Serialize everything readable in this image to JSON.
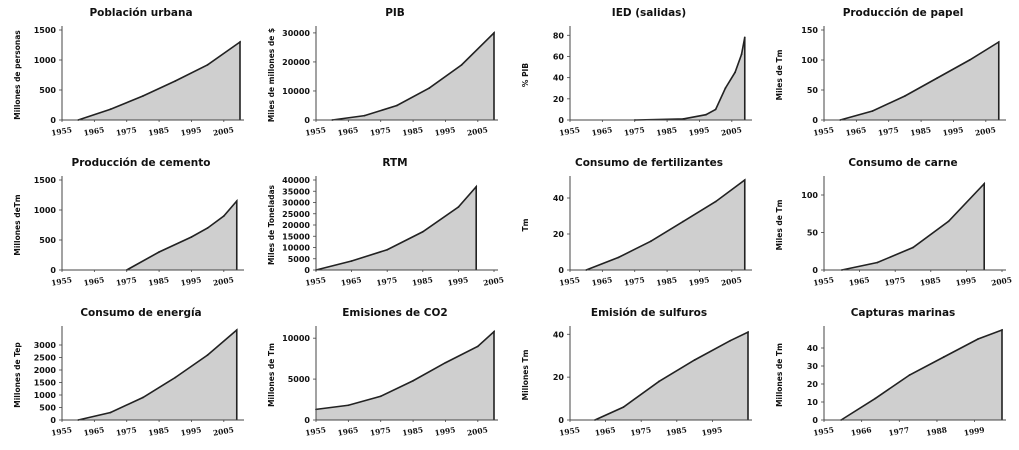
{
  "chart_data": [
    {
      "type": "area",
      "title": "Población urbana",
      "ylabel": "Millones de personas",
      "yticks": [
        0,
        500,
        1000,
        1500
      ],
      "ylim": [
        0,
        1500
      ],
      "xlim": [
        1955,
        2010
      ],
      "xticks": [
        "1955",
        "1965",
        "1975",
        "1985",
        "1995",
        "2005"
      ],
      "x": [
        1960,
        1970,
        1980,
        1990,
        2000,
        2010
      ],
      "y": [
        0,
        180,
        400,
        650,
        920,
        1300
      ]
    },
    {
      "type": "area",
      "title": "PIB",
      "ylabel": "Miles de millones de $",
      "yticks": [
        0,
        10000,
        20000,
        30000
      ],
      "ylim": [
        0,
        31000
      ],
      "xlim": [
        1955,
        2010
      ],
      "xticks": [
        "1955",
        "1965",
        "1975",
        "1985",
        "1995",
        "2005"
      ],
      "x": [
        1960,
        1970,
        1980,
        1990,
        2000,
        2010
      ],
      "y": [
        0,
        1500,
        5000,
        11000,
        19000,
        30000
      ]
    },
    {
      "type": "area",
      "title": "IED (salidas)",
      "ylabel": "% PIB",
      "yticks": [
        0,
        20,
        40,
        60,
        80
      ],
      "ylim": [
        0,
        85
      ],
      "xlim": [
        1955,
        2010
      ],
      "xticks": [
        "1955",
        "1965",
        "1975",
        "1985",
        "1995",
        "2005"
      ],
      "x": [
        1975,
        1990,
        1997,
        2000,
        2003,
        2006,
        2008,
        2009
      ],
      "y": [
        0,
        1,
        5,
        10,
        30,
        45,
        62,
        78
      ]
    },
    {
      "type": "area",
      "title": "Producción de papel",
      "ylabel": "Miles de Tm",
      "yticks": [
        0,
        50,
        100,
        150
      ],
      "ylim": [
        0,
        150
      ],
      "xlim": [
        1955,
        2010
      ],
      "xticks": [
        "1955",
        "1965",
        "1975",
        "1985",
        "1995",
        "2005"
      ],
      "x": [
        1960,
        1970,
        1980,
        1990,
        2000,
        2009
      ],
      "y": [
        0,
        15,
        40,
        70,
        100,
        130
      ]
    },
    {
      "type": "area",
      "title": "Producción de cemento",
      "ylabel": "Millones deTm",
      "yticks": [
        0,
        500,
        1000,
        1500
      ],
      "ylim": [
        0,
        1500
      ],
      "xlim": [
        1955,
        2010
      ],
      "xticks": [
        "1955",
        "1965",
        "1975",
        "1985",
        "1995",
        "2005"
      ],
      "x": [
        1975,
        1985,
        1995,
        2000,
        2005,
        2009
      ],
      "y": [
        0,
        300,
        550,
        700,
        900,
        1150
      ]
    },
    {
      "type": "area",
      "title": "RTM",
      "ylabel": "Miles de Toneladas",
      "yticks": [
        0,
        5000,
        10000,
        15000,
        20000,
        25000,
        30000,
        35000,
        40000
      ],
      "ylim": [
        0,
        40000
      ],
      "xlim": [
        1955,
        2005
      ],
      "xticks": [
        "1955",
        "1965",
        "1975",
        "1985",
        "1995",
        "2005"
      ],
      "x": [
        1955,
        1965,
        1975,
        1985,
        1995,
        2000
      ],
      "y": [
        0,
        4000,
        9000,
        17000,
        28000,
        37000
      ]
    },
    {
      "type": "area",
      "title": "Consumo de fertilizantes",
      "ylabel": "Tm",
      "yticks": [
        0,
        20,
        40
      ],
      "ylim": [
        0,
        50
      ],
      "xlim": [
        1955,
        2010
      ],
      "xticks": [
        "1955",
        "1965",
        "1975",
        "1985",
        "1995",
        "2005"
      ],
      "x": [
        1960,
        1970,
        1980,
        1990,
        2000,
        2009
      ],
      "y": [
        0,
        7,
        16,
        27,
        38,
        50
      ]
    },
    {
      "type": "area",
      "title": "Consumo de carne",
      "ylabel": "Miles de Tm",
      "yticks": [
        0,
        50,
        100
      ],
      "ylim": [
        0,
        120
      ],
      "xlim": [
        1955,
        2005
      ],
      "xticks": [
        "1955",
        "1965",
        "1975",
        "1985",
        "1995",
        "2005"
      ],
      "x": [
        1960,
        1970,
        1980,
        1990,
        2000
      ],
      "y": [
        0,
        10,
        30,
        65,
        115
      ]
    },
    {
      "type": "area",
      "title": "Consumo de energía",
      "ylabel": "Millones de Tep",
      "yticks": [
        0,
        500,
        1000,
        1500,
        2000,
        2500,
        3000
      ],
      "ylim": [
        0,
        3600
      ],
      "xlim": [
        1955,
        2010
      ],
      "xticks": [
        "1955",
        "1965",
        "1975",
        "1985",
        "1995",
        "2005"
      ],
      "x": [
        1960,
        1970,
        1980,
        1990,
        2000,
        2009
      ],
      "y": [
        0,
        300,
        900,
        1700,
        2600,
        3600
      ]
    },
    {
      "type": "area",
      "title": "Emisiones de CO2",
      "ylabel": "Millones de Tm",
      "yticks": [
        0,
        5000,
        10000
      ],
      "ylim": [
        0,
        11000
      ],
      "xlim": [
        1955,
        2010
      ],
      "xticks": [
        "1955",
        "1965",
        "1975",
        "1985",
        "1995",
        "2005"
      ],
      "x": [
        1955,
        1965,
        1975,
        1985,
        1995,
        2005,
        2010
      ],
      "y": [
        1300,
        1800,
        2900,
        4800,
        7000,
        9000,
        10800
      ]
    },
    {
      "type": "area",
      "title": "Emisión de sulfuros",
      "ylabel": "Millones Tm",
      "yticks": [
        0,
        20,
        40
      ],
      "ylim": [
        0,
        42
      ],
      "xlim": [
        1955,
        2005
      ],
      "xticks": [
        "1955",
        "1965",
        "1975",
        "1985",
        "1995"
      ],
      "x": [
        1962,
        1970,
        1980,
        1990,
        2000,
        2005
      ],
      "y": [
        0,
        6,
        18,
        28,
        37,
        41
      ]
    },
    {
      "type": "area",
      "title": "Capturas marinas",
      "ylabel": "Millones de Tm",
      "yticks": [
        0,
        10,
        20,
        30,
        40
      ],
      "ylim": [
        0,
        50
      ],
      "xlim": [
        1955,
        2007
      ],
      "xticks": [
        "1955",
        "1966",
        "1977",
        "1988",
        "1999"
      ],
      "x": [
        1960,
        1970,
        1980,
        1990,
        2000,
        2007
      ],
      "y": [
        0,
        12,
        25,
        35,
        45,
        50
      ]
    }
  ]
}
